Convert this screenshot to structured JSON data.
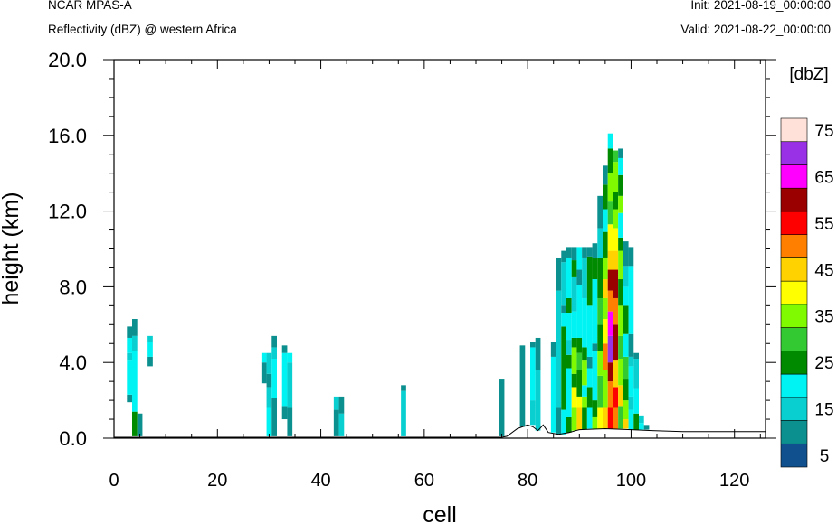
{
  "header": {
    "left_line1": "NCAR MPAS-A",
    "left_line2": "Reflectivity (dBZ) @ western Africa",
    "right_line1": "Init: 2021-08-19_00:00:00",
    "right_line2": "Valid: 2021-08-22_00:00:00"
  },
  "chart_data": {
    "type": "heatmap",
    "title": "Reflectivity (dBZ) @ western Africa",
    "xlabel": "cell",
    "ylabel": "height (km)",
    "xlim": [
      0,
      126
    ],
    "ylim": [
      0,
      20
    ],
    "xticks": [
      0,
      20,
      40,
      60,
      80,
      100,
      120
    ],
    "xtick_labels": [
      "0",
      "20",
      "40",
      "60",
      "80",
      "100",
      "120"
    ],
    "yticks": [
      0,
      4,
      8,
      12,
      16,
      20
    ],
    "ytick_labels": [
      "0.0",
      "4.0",
      "8.0",
      "12.0",
      "16.0",
      "20.0"
    ],
    "colorbar": {
      "unit_label": "[dbZ]",
      "levels": [
        0,
        5,
        10,
        15,
        20,
        25,
        30,
        35,
        40,
        45,
        50,
        55,
        60,
        65,
        70,
        75,
        80
      ],
      "tick_labels": [
        "5",
        "15",
        "25",
        "35",
        "45",
        "55",
        "65",
        "75"
      ],
      "colors": [
        "#11508f",
        "#0c8f8f",
        "#09cfd1",
        "#00f3f3",
        "#008a00",
        "#33c933",
        "#7ffa00",
        "#ffff00",
        "#ffd200",
        "#ff8000",
        "#ff0000",
        "#9b0000",
        "#ff00ff",
        "#9932e6",
        "#ffe1d9"
      ]
    },
    "terrain": [
      [
        0,
        0.05
      ],
      [
        75,
        0.05
      ],
      [
        76,
        0.1
      ],
      [
        78,
        0.5
      ],
      [
        80,
        0.7
      ],
      [
        81,
        0.6
      ],
      [
        82,
        0.4
      ],
      [
        83,
        0.7
      ],
      [
        84,
        0.3
      ],
      [
        86,
        0.2
      ],
      [
        88,
        0.3
      ],
      [
        90,
        0.45
      ],
      [
        95,
        0.5
      ],
      [
        100,
        0.45
      ],
      [
        104,
        0.4
      ],
      [
        110,
        0.35
      ],
      [
        126,
        0.35
      ]
    ],
    "columns": [
      {
        "x": 3,
        "segments": [
          [
            1.9,
            2.3,
            5
          ],
          [
            2.3,
            4.1,
            15
          ],
          [
            4.1,
            4.5,
            10
          ],
          [
            4.5,
            5.3,
            15
          ],
          [
            5.3,
            5.9,
            5
          ]
        ]
      },
      {
        "x": 4,
        "segments": [
          [
            0.1,
            1.4,
            20
          ],
          [
            1.4,
            4.6,
            15
          ],
          [
            4.6,
            5.4,
            10
          ],
          [
            5.4,
            6.3,
            5
          ]
        ]
      },
      {
        "x": 5,
        "segments": [
          [
            0.1,
            1.3,
            5
          ]
        ]
      },
      {
        "x": 7,
        "segments": [
          [
            3.8,
            4.3,
            5
          ],
          [
            4.3,
            5.1,
            15
          ],
          [
            5.1,
            5.4,
            10
          ]
        ]
      },
      {
        "x": 29,
        "segments": [
          [
            2.9,
            4.0,
            5
          ],
          [
            4.0,
            4.5,
            15
          ]
        ]
      },
      {
        "x": 30,
        "segments": [
          [
            0.1,
            1.6,
            15
          ],
          [
            1.6,
            2.7,
            10
          ],
          [
            2.7,
            3.4,
            5
          ],
          [
            3.4,
            4.5,
            10
          ]
        ]
      },
      {
        "x": 31,
        "segments": [
          [
            0.1,
            2.1,
            5
          ],
          [
            2.1,
            4.2,
            15
          ],
          [
            4.2,
            4.8,
            10
          ],
          [
            4.8,
            5.4,
            5
          ]
        ]
      },
      {
        "x": 33,
        "segments": [
          [
            1.0,
            1.7,
            5
          ],
          [
            1.7,
            4.5,
            15
          ],
          [
            4.5,
            4.9,
            5
          ]
        ]
      },
      {
        "x": 34,
        "segments": [
          [
            0.1,
            1.6,
            5
          ],
          [
            1.6,
            4.0,
            10
          ],
          [
            4.0,
            4.5,
            15
          ]
        ]
      },
      {
        "x": 43,
        "segments": [
          [
            0.1,
            1.5,
            5
          ],
          [
            1.5,
            2.2,
            10
          ]
        ]
      },
      {
        "x": 44,
        "segments": [
          [
            0.1,
            1.3,
            10
          ],
          [
            1.3,
            2.2,
            5
          ]
        ]
      },
      {
        "x": 56,
        "segments": [
          [
            0.1,
            2.5,
            10
          ],
          [
            2.5,
            2.8,
            5
          ]
        ]
      },
      {
        "x": 75,
        "segments": [
          [
            0.1,
            3.1,
            5
          ]
        ]
      },
      {
        "x": 79,
        "segments": [
          [
            0.6,
            4.9,
            5
          ]
        ]
      },
      {
        "x": 81,
        "segments": [
          [
            0.7,
            2.0,
            10
          ],
          [
            2.0,
            4.8,
            15
          ],
          [
            4.8,
            5.1,
            5
          ]
        ]
      },
      {
        "x": 82,
        "segments": [
          [
            0.4,
            3.6,
            10
          ],
          [
            3.6,
            5.3,
            5
          ]
        ]
      },
      {
        "x": 85,
        "segments": [
          [
            0.3,
            4.3,
            15
          ],
          [
            4.3,
            5.1,
            5
          ]
        ]
      },
      {
        "x": 86,
        "segments": [
          [
            0.2,
            1.6,
            5
          ],
          [
            1.6,
            7.8,
            10
          ],
          [
            7.8,
            9.5,
            5
          ]
        ]
      },
      {
        "x": 87,
        "segments": [
          [
            0.2,
            1.5,
            15
          ],
          [
            1.5,
            5.9,
            20
          ],
          [
            5.9,
            6.6,
            15
          ],
          [
            6.6,
            7.0,
            5
          ],
          [
            7.0,
            9.3,
            10
          ],
          [
            9.3,
            9.9,
            5
          ]
        ]
      },
      {
        "x": 88,
        "segments": [
          [
            0.3,
            1.1,
            20
          ],
          [
            1.1,
            3.7,
            15
          ],
          [
            3.7,
            4.4,
            20
          ],
          [
            4.4,
            5.2,
            10
          ],
          [
            5.2,
            6.6,
            15
          ],
          [
            6.6,
            7.4,
            20
          ],
          [
            7.4,
            9.5,
            15
          ],
          [
            9.5,
            10.1,
            5
          ]
        ]
      },
      {
        "x": 89,
        "segments": [
          [
            0.4,
            1.6,
            30
          ],
          [
            1.6,
            2.7,
            35
          ],
          [
            2.7,
            3.4,
            20
          ],
          [
            3.4,
            4.8,
            30
          ],
          [
            4.8,
            5.3,
            20
          ],
          [
            5.3,
            6.7,
            15
          ],
          [
            6.7,
            8.5,
            10
          ],
          [
            8.5,
            9.4,
            20
          ],
          [
            9.4,
            10.1,
            5
          ]
        ]
      },
      {
        "x": 90,
        "segments": [
          [
            0.45,
            1.6,
            40
          ],
          [
            1.6,
            2.2,
            35
          ],
          [
            2.2,
            3.6,
            20
          ],
          [
            3.6,
            4.5,
            25
          ],
          [
            4.5,
            5.3,
            20
          ],
          [
            5.3,
            8.1,
            15
          ],
          [
            8.1,
            8.9,
            5
          ],
          [
            8.9,
            10.1,
            15
          ]
        ]
      },
      {
        "x": 91,
        "segments": [
          [
            0.45,
            1.6,
            20
          ],
          [
            1.6,
            2.2,
            30
          ],
          [
            2.2,
            2.8,
            15
          ],
          [
            2.8,
            4.1,
            30
          ],
          [
            4.1,
            4.8,
            20
          ],
          [
            4.8,
            7.4,
            15
          ],
          [
            7.4,
            9.5,
            10
          ],
          [
            9.5,
            10.1,
            5
          ]
        ]
      },
      {
        "x": 92,
        "segments": [
          [
            0.5,
            1.6,
            15
          ],
          [
            1.6,
            2.7,
            20
          ],
          [
            2.7,
            3.7,
            15
          ],
          [
            3.7,
            4.3,
            5
          ],
          [
            4.3,
            7.0,
            15
          ],
          [
            7.0,
            9.6,
            20
          ],
          [
            9.6,
            10.1,
            5
          ]
        ]
      },
      {
        "x": 93,
        "segments": [
          [
            0.5,
            1.1,
            30
          ],
          [
            1.1,
            2.0,
            20
          ],
          [
            2.0,
            4.6,
            15
          ],
          [
            4.6,
            5.0,
            5
          ],
          [
            5.0,
            8.4,
            15
          ],
          [
            8.4,
            9.5,
            20
          ],
          [
            9.5,
            10.3,
            5
          ]
        ]
      },
      {
        "x": 94,
        "segments": [
          [
            0.5,
            1.6,
            35
          ],
          [
            1.6,
            3.3,
            25
          ],
          [
            3.3,
            4.6,
            30
          ],
          [
            4.6,
            6.0,
            20
          ],
          [
            6.0,
            7.4,
            25
          ],
          [
            7.4,
            9.5,
            20
          ],
          [
            9.5,
            11.1,
            10
          ],
          [
            11.1,
            12.8,
            5
          ]
        ]
      },
      {
        "x": 95,
        "segments": [
          [
            0.5,
            1.6,
            40
          ],
          [
            1.6,
            3.6,
            30
          ],
          [
            3.6,
            5.0,
            45
          ],
          [
            5.0,
            6.3,
            35
          ],
          [
            6.3,
            7.4,
            30
          ],
          [
            7.4,
            8.4,
            40
          ],
          [
            8.4,
            9.5,
            30
          ],
          [
            9.5,
            10.9,
            20
          ],
          [
            10.9,
            12.1,
            15
          ],
          [
            12.1,
            13.4,
            20
          ],
          [
            13.4,
            14.4,
            5
          ]
        ]
      },
      {
        "x": 96,
        "segments": [
          [
            0.5,
            1.6,
            50
          ],
          [
            1.6,
            3.0,
            45
          ],
          [
            3.0,
            4.0,
            55
          ],
          [
            4.0,
            5.4,
            65
          ],
          [
            5.4,
            6.7,
            60
          ],
          [
            6.7,
            7.8,
            45
          ],
          [
            7.8,
            8.9,
            55
          ],
          [
            8.9,
            9.9,
            40
          ],
          [
            9.9,
            11.3,
            35
          ],
          [
            11.3,
            12.5,
            25
          ],
          [
            12.5,
            14.0,
            30
          ],
          [
            14.0,
            15.3,
            20
          ],
          [
            15.3,
            16.1,
            15
          ]
        ]
      },
      {
        "x": 97,
        "segments": [
          [
            0.5,
            1.6,
            45
          ],
          [
            1.6,
            2.7,
            50
          ],
          [
            2.7,
            4.1,
            40
          ],
          [
            4.1,
            6.0,
            55
          ],
          [
            6.0,
            7.4,
            45
          ],
          [
            7.4,
            8.9,
            55
          ],
          [
            8.9,
            9.9,
            40
          ],
          [
            9.9,
            11.1,
            35
          ],
          [
            11.1,
            12.1,
            30
          ],
          [
            12.1,
            13.0,
            20
          ],
          [
            13.0,
            14.6,
            30
          ],
          [
            14.6,
            15.2,
            25
          ]
        ]
      },
      {
        "x": 98,
        "segments": [
          [
            0.5,
            1.7,
            25
          ],
          [
            1.7,
            2.8,
            40
          ],
          [
            2.8,
            4.2,
            30
          ],
          [
            4.2,
            5.4,
            25
          ],
          [
            5.4,
            7.0,
            30
          ],
          [
            7.0,
            8.4,
            20
          ],
          [
            8.4,
            9.9,
            30
          ],
          [
            9.9,
            10.6,
            20
          ],
          [
            10.6,
            11.9,
            15
          ],
          [
            11.9,
            12.8,
            30
          ],
          [
            12.8,
            13.9,
            20
          ],
          [
            13.9,
            14.8,
            15
          ],
          [
            14.8,
            15.3,
            5
          ]
        ]
      },
      {
        "x": 99,
        "segments": [
          [
            0.5,
            1.0,
            40
          ],
          [
            1.0,
            2.0,
            30
          ],
          [
            2.0,
            3.1,
            20
          ],
          [
            3.1,
            4.3,
            25
          ],
          [
            4.3,
            5.5,
            15
          ],
          [
            5.5,
            7.0,
            20
          ],
          [
            7.0,
            8.0,
            15
          ],
          [
            8.0,
            9.1,
            10
          ],
          [
            9.1,
            10.4,
            5
          ]
        ]
      },
      {
        "x": 100,
        "segments": [
          [
            0.45,
            1.5,
            15
          ],
          [
            1.5,
            2.2,
            10
          ],
          [
            2.2,
            3.8,
            15
          ],
          [
            3.8,
            4.3,
            10
          ],
          [
            4.3,
            5.5,
            5
          ],
          [
            5.5,
            9.1,
            15
          ],
          [
            9.1,
            10.1,
            5
          ]
        ]
      },
      {
        "x": 101,
        "segments": [
          [
            0.45,
            1.3,
            20
          ],
          [
            1.3,
            2.6,
            15
          ],
          [
            2.6,
            4.2,
            10
          ],
          [
            4.2,
            4.5,
            5
          ]
        ]
      },
      {
        "x": 102,
        "segments": [
          [
            0.45,
            0.8,
            15
          ],
          [
            0.8,
            1.2,
            10
          ]
        ]
      },
      {
        "x": 103,
        "segments": [
          [
            0.45,
            0.7,
            5
          ]
        ]
      }
    ]
  }
}
